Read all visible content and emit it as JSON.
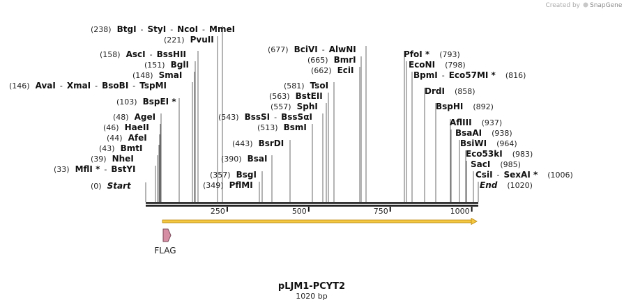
{
  "brand": {
    "created_by": "Created by",
    "product": "SnapGene"
  },
  "title": "pLJM1-PCYT2",
  "length_label": "1020 bp",
  "sequence_length": 1020,
  "ruler_ticks": [
    {
      "value": 250,
      "label": "250"
    },
    {
      "value": 500,
      "label": "500"
    },
    {
      "value": 750,
      "label": "750"
    },
    {
      "value": 1000,
      "label": "1000"
    }
  ],
  "features": [
    {
      "name": "FLAG",
      "start": 52,
      "end": 75,
      "color": "#d58ea4",
      "type": "tag"
    },
    {
      "name": "",
      "start": 52,
      "end": 1020,
      "color": "#f5c842",
      "type": "orf"
    }
  ],
  "site_groups": [
    {
      "pos": "(238)",
      "names": [
        "BtgI",
        "StyI",
        "NcoI",
        "MmeI"
      ],
      "stars": [
        false,
        false,
        false,
        false
      ]
    },
    {
      "pos": "(221)",
      "names": [
        "PvuII"
      ],
      "stars": [
        false
      ]
    },
    {
      "pos": "(158)",
      "names": [
        "AscI",
        "BssHII"
      ],
      "stars": [
        false,
        false
      ]
    },
    {
      "pos": "(151)",
      "names": [
        "BglI"
      ],
      "stars": [
        false
      ]
    },
    {
      "pos": "(148)",
      "names": [
        "SmaI"
      ],
      "stars": [
        false
      ]
    },
    {
      "pos": "(146)",
      "names": [
        "AvaI",
        "XmaI",
        "BsoBI",
        "TspMI"
      ],
      "stars": [
        false,
        false,
        false,
        false
      ]
    },
    {
      "pos": "(103)",
      "names": [
        "BspEI"
      ],
      "stars": [
        true
      ]
    },
    {
      "pos": "(48)",
      "names": [
        "AgeI"
      ],
      "stars": [
        false
      ]
    },
    {
      "pos": "(46)",
      "names": [
        "HaeII"
      ],
      "stars": [
        false
      ]
    },
    {
      "pos": "(44)",
      "names": [
        "AfeI"
      ],
      "stars": [
        false
      ]
    },
    {
      "pos": "(43)",
      "names": [
        "BmtI"
      ],
      "stars": [
        false
      ]
    },
    {
      "pos": "(39)",
      "names": [
        "NheI"
      ],
      "stars": [
        false
      ]
    },
    {
      "pos": "(33)",
      "names": [
        "MflI",
        "BstYI"
      ],
      "stars": [
        true,
        false
      ]
    },
    {
      "pos": "(0)",
      "names": [
        "Start"
      ],
      "stars": [
        false
      ]
    },
    {
      "pos": "(543)",
      "names": [
        "BssSI",
        "BssSαI"
      ],
      "stars": [
        false,
        false
      ]
    },
    {
      "pos": "(513)",
      "names": [
        "BsmI"
      ],
      "stars": [
        false
      ]
    },
    {
      "pos": "(443)",
      "names": [
        "BsrDI"
      ],
      "stars": [
        false
      ]
    },
    {
      "pos": "(390)",
      "names": [
        "BsaI"
      ],
      "stars": [
        false
      ]
    },
    {
      "pos": "(357)",
      "names": [
        "BsgI"
      ],
      "stars": [
        false
      ]
    },
    {
      "pos": "(349)",
      "names": [
        "PflMI"
      ],
      "stars": [
        false
      ]
    },
    {
      "pos": "(677)",
      "names": [
        "BciVI",
        "AlwNI"
      ],
      "stars": [
        false,
        false
      ]
    },
    {
      "pos": "(665)",
      "names": [
        "BmrI"
      ],
      "stars": [
        false
      ]
    },
    {
      "pos": "(662)",
      "names": [
        "EciI"
      ],
      "stars": [
        false
      ]
    },
    {
      "pos": "(581)",
      "names": [
        "TsoI"
      ],
      "stars": [
        false
      ]
    },
    {
      "pos": "(563)",
      "names": [
        "BstEII"
      ],
      "stars": [
        false
      ]
    },
    {
      "pos": "(557)",
      "names": [
        "SphI"
      ],
      "stars": [
        false
      ]
    },
    {
      "pos": "(793)",
      "names": [
        "PfoI"
      ],
      "stars": [
        true
      ]
    },
    {
      "pos": "(798)",
      "names": [
        "EcoNI"
      ],
      "stars": [
        false
      ]
    },
    {
      "pos": "(816)",
      "names": [
        "BpmI",
        "Eco57MI"
      ],
      "stars": [
        false,
        true
      ]
    },
    {
      "pos": "(858)",
      "names": [
        "DrdI"
      ],
      "stars": [
        false
      ]
    },
    {
      "pos": "(892)",
      "names": [
        "BspHI"
      ],
      "stars": [
        false
      ]
    },
    {
      "pos": "(937)",
      "names": [
        "AflIII"
      ],
      "stars": [
        false
      ]
    },
    {
      "pos": "(938)",
      "names": [
        "BsaAI"
      ],
      "stars": [
        false
      ]
    },
    {
      "pos": "(964)",
      "names": [
        "BsiWI"
      ],
      "stars": [
        false
      ]
    },
    {
      "pos": "(983)",
      "names": [
        "Eco53kI"
      ],
      "stars": [
        false
      ]
    },
    {
      "pos": "(985)",
      "names": [
        "SacI"
      ],
      "stars": [
        false
      ]
    },
    {
      "pos": "(1006)",
      "names": [
        "CsiI",
        "SexAI"
      ],
      "stars": [
        false,
        true
      ]
    },
    {
      "pos": "(1020)",
      "names": [
        "End"
      ],
      "stars": [
        false
      ]
    }
  ]
}
